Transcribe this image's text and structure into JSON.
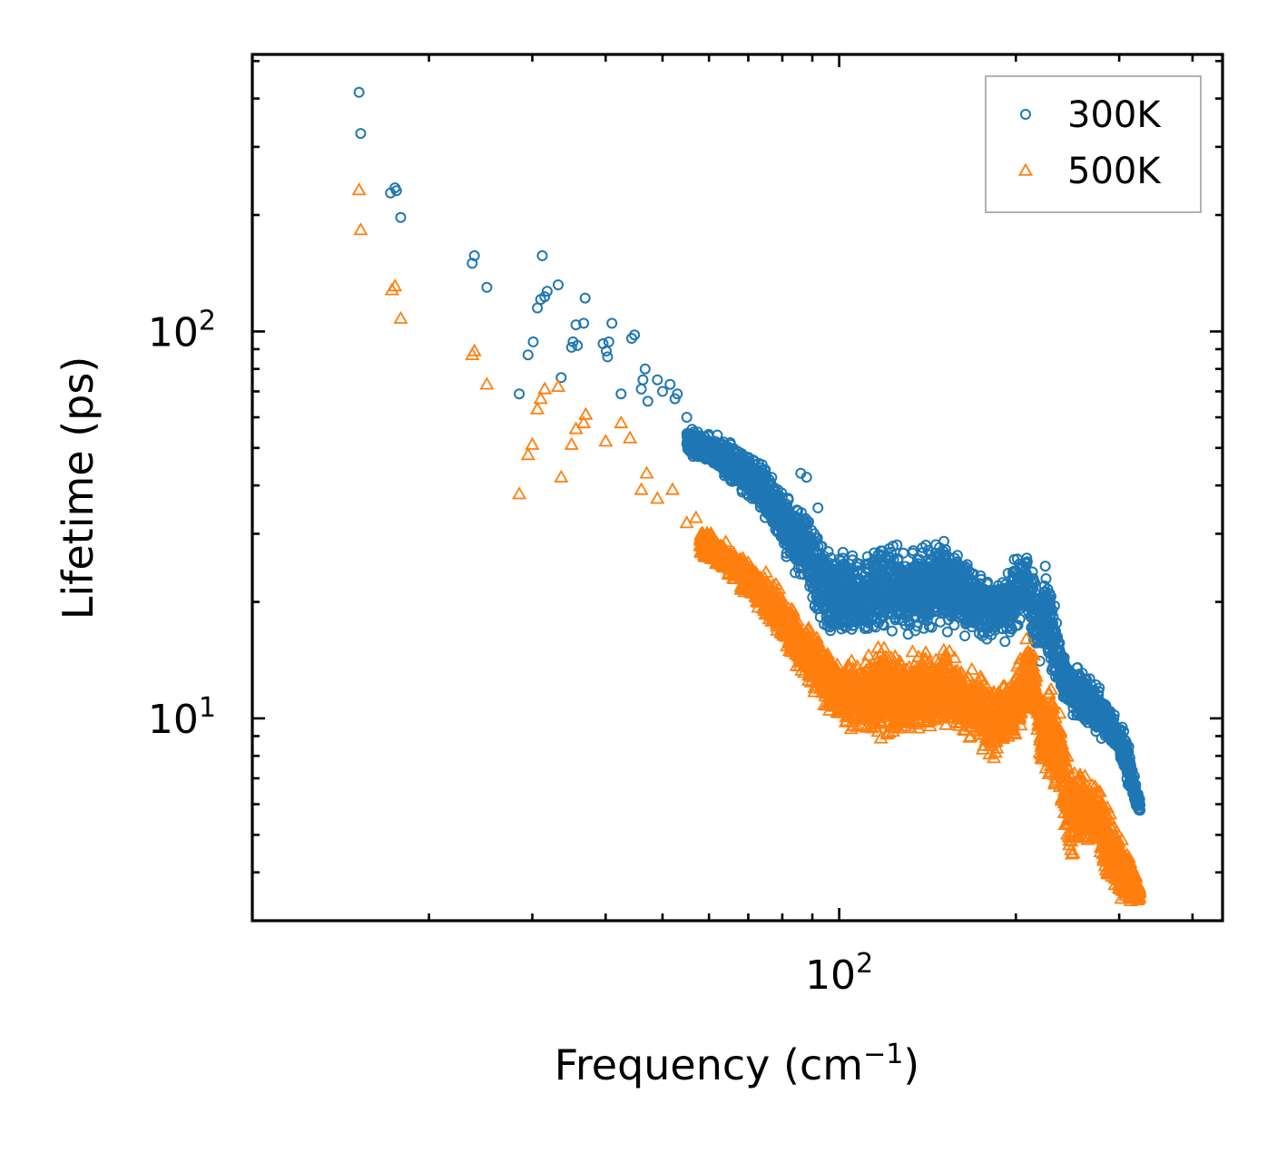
{
  "chart_data": {
    "type": "scatter",
    "title": "",
    "xlabel": "Frequency (cm",
    "xlabel_sup": "−1",
    "xlabel_close": ")",
    "ylabel": "Lifetime (ps)",
    "xscale": "log",
    "yscale": "log",
    "xlim": [
      10,
      450
    ],
    "ylim": [
      3.0,
      520
    ],
    "x_major_ticks": [
      {
        "value": 100,
        "base": "10",
        "exp": "2"
      }
    ],
    "y_major_ticks": [
      {
        "value": 10,
        "base": "10",
        "exp": "1"
      },
      {
        "value": 100,
        "base": "10",
        "exp": "2"
      }
    ],
    "legend_position": "top-right",
    "series": [
      {
        "name": "300K",
        "marker": "circle",
        "color": "#1f77b4",
        "key_points": [
          [
            15.2,
            415
          ],
          [
            15.3,
            325
          ],
          [
            17.2,
            228
          ],
          [
            17.5,
            235
          ],
          [
            17.6,
            231
          ],
          [
            17.9,
            197
          ],
          [
            23.7,
            150
          ],
          [
            23.9,
            157
          ],
          [
            25.1,
            130
          ],
          [
            28.5,
            69
          ],
          [
            29.5,
            87
          ],
          [
            30.1,
            94
          ],
          [
            30.6,
            115
          ],
          [
            31.0,
            121
          ],
          [
            31.2,
            157
          ],
          [
            31.5,
            123
          ],
          [
            31.8,
            127
          ],
          [
            33.2,
            132
          ],
          [
            33.6,
            76
          ],
          [
            35.0,
            91
          ],
          [
            35.2,
            94
          ],
          [
            35.6,
            104
          ],
          [
            35.8,
            92
          ],
          [
            36.7,
            105
          ],
          [
            36.9,
            122
          ],
          [
            39.6,
            93
          ],
          [
            40.1,
            89
          ],
          [
            40.3,
            86
          ],
          [
            40.5,
            94
          ],
          [
            41.0,
            105
          ],
          [
            42.5,
            69
          ],
          [
            44.3,
            96
          ],
          [
            44.8,
            98
          ],
          [
            46.0,
            71
          ],
          [
            46.3,
            75
          ],
          [
            46.7,
            80
          ],
          [
            47.2,
            66
          ],
          [
            49.0,
            75
          ],
          [
            50.0,
            70
          ],
          [
            51.5,
            73
          ],
          [
            52.5,
            67
          ],
          [
            53.0,
            69
          ],
          [
            55.0,
            60
          ],
          [
            56.5,
            55
          ],
          [
            57.0,
            51
          ],
          [
            58.0,
            53
          ],
          [
            60.0,
            51
          ],
          [
            62.0,
            54
          ],
          [
            64.0,
            48
          ],
          [
            66.0,
            46
          ],
          [
            68.0,
            44
          ],
          [
            70.0,
            41
          ],
          [
            72.0,
            39
          ],
          [
            75.0,
            36
          ],
          [
            79.0,
            33
          ],
          [
            86.0,
            43
          ],
          [
            88.0,
            42
          ],
          [
            92.0,
            35
          ]
        ],
        "cloud": [
          [
            55,
            48,
            57
          ],
          [
            60,
            44,
            55
          ],
          [
            65,
            40,
            53
          ],
          [
            70,
            36,
            50
          ],
          [
            75,
            31,
            47
          ],
          [
            80,
            26,
            41
          ],
          [
            85,
            22,
            37
          ],
          [
            90,
            18.5,
            34
          ],
          [
            95,
            15.5,
            30
          ],
          [
            100,
            15,
            28
          ],
          [
            110,
            15,
            28
          ],
          [
            120,
            16,
            31
          ],
          [
            130,
            15.5,
            28
          ],
          [
            140,
            16.5,
            29
          ],
          [
            150,
            16.5,
            31
          ],
          [
            160,
            16,
            28
          ],
          [
            170,
            15.5,
            25
          ],
          [
            180,
            15.5,
            25
          ],
          [
            190,
            15.5,
            24
          ],
          [
            200,
            16,
            27
          ],
          [
            208,
            18,
            29
          ],
          [
            212,
            16,
            27
          ],
          [
            218,
            13,
            24
          ],
          [
            225,
            14,
            27
          ],
          [
            230,
            12,
            24
          ],
          [
            240,
            11,
            15
          ],
          [
            250,
            10,
            14
          ],
          [
            260,
            9.5,
            14
          ],
          [
            270,
            9,
            13
          ],
          [
            280,
            8.5,
            12
          ],
          [
            290,
            8.5,
            11
          ],
          [
            300,
            7.5,
            10.3
          ],
          [
            310,
            6.5,
            9
          ],
          [
            318,
            5.8,
            7.5
          ],
          [
            326,
            5.5,
            6.2
          ]
        ]
      },
      {
        "name": "500K",
        "marker": "triangle",
        "color": "#ff7f0e",
        "key_points": [
          [
            15.2,
            232
          ],
          [
            15.3,
            183
          ],
          [
            17.3,
            128
          ],
          [
            17.5,
            131
          ],
          [
            17.9,
            108
          ],
          [
            23.7,
            87
          ],
          [
            23.9,
            89
          ],
          [
            25.1,
            73
          ],
          [
            28.5,
            38
          ],
          [
            29.5,
            48
          ],
          [
            30.0,
            51
          ],
          [
            30.6,
            63
          ],
          [
            31.0,
            67
          ],
          [
            31.5,
            71
          ],
          [
            33.2,
            72
          ],
          [
            33.6,
            42
          ],
          [
            35.0,
            51
          ],
          [
            35.6,
            56
          ],
          [
            36.7,
            58
          ],
          [
            37.0,
            61
          ],
          [
            40.0,
            52
          ],
          [
            42.5,
            58
          ],
          [
            44.0,
            53
          ],
          [
            46.0,
            39
          ],
          [
            47.0,
            43
          ],
          [
            49.0,
            37
          ],
          [
            52.0,
            39
          ],
          [
            55.0,
            32
          ],
          [
            57.0,
            33
          ]
        ],
        "cloud": [
          [
            58,
            26,
            32
          ],
          [
            62,
            24,
            30
          ],
          [
            66,
            22,
            28
          ],
          [
            70,
            20,
            26
          ],
          [
            75,
            17.5,
            24
          ],
          [
            80,
            15,
            22
          ],
          [
            85,
            13,
            19
          ],
          [
            90,
            11.5,
            17.5
          ],
          [
            95,
            10,
            15.5
          ],
          [
            100,
            9.5,
            14.5
          ],
          [
            110,
            9.0,
            14.5
          ],
          [
            120,
            8.5,
            16.5
          ],
          [
            130,
            9.0,
            14.5
          ],
          [
            140,
            8.5,
            16
          ],
          [
            150,
            9.0,
            16.5
          ],
          [
            160,
            9.0,
            14.5
          ],
          [
            170,
            8.5,
            14
          ],
          [
            180,
            7.5,
            13
          ],
          [
            190,
            8.0,
            13
          ],
          [
            200,
            8.5,
            14
          ],
          [
            210,
            10,
            17
          ],
          [
            216,
            9,
            15
          ],
          [
            222,
            7.0,
            12
          ],
          [
            230,
            6.5,
            14
          ],
          [
            240,
            5.5,
            10
          ],
          [
            248,
            3.7,
            8.5
          ],
          [
            255,
            4.5,
            8
          ],
          [
            265,
            4.5,
            7.5
          ],
          [
            275,
            4.5,
            7.2
          ],
          [
            285,
            3.6,
            6.8
          ],
          [
            295,
            3.3,
            5.8
          ],
          [
            305,
            3.2,
            5.0
          ],
          [
            315,
            3.2,
            4.5
          ],
          [
            325,
            3.3,
            3.7
          ]
        ]
      }
    ]
  }
}
